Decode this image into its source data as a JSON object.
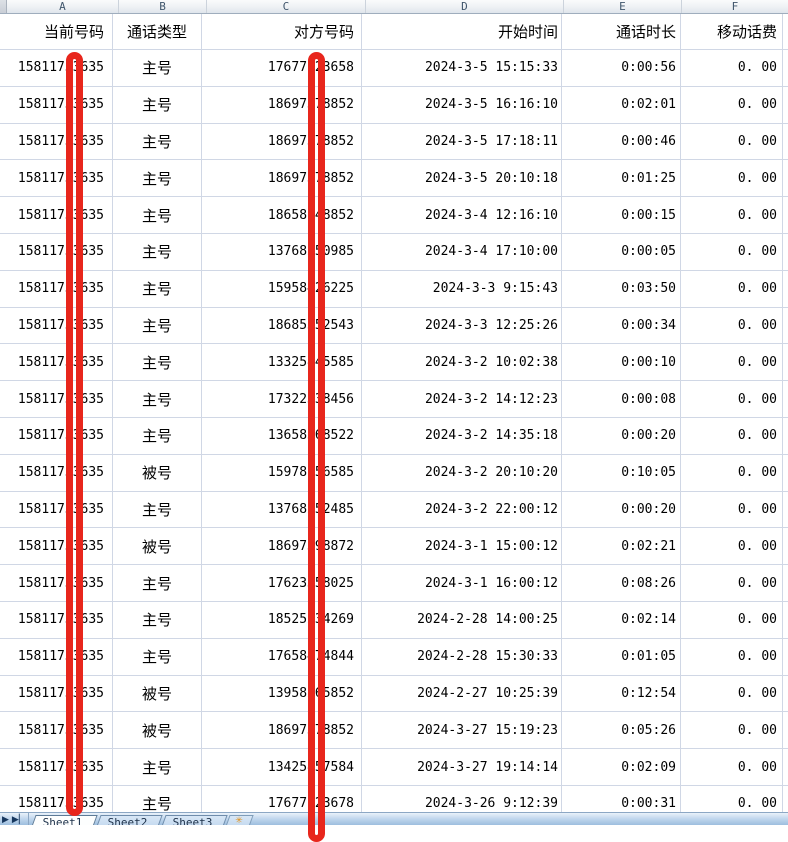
{
  "colors": {
    "redaction_red": "#e8261c",
    "gridline": "#d0d7e5"
  },
  "column_letters": [
    "A",
    "B",
    "C",
    "D",
    "E",
    "F"
  ],
  "table": {
    "headers": [
      "当前号码",
      "通话类型",
      "对方号码",
      "开始时间",
      "通话时长",
      "移动话费"
    ],
    "rows": [
      [
        "15811753635",
        "主号",
        "17677123658",
        "2024-3-5 15:15:33",
        "0:00:56",
        "0. 00"
      ],
      [
        "15811753635",
        "主号",
        "18697378852",
        "2024-3-5 16:16:10",
        "0:02:01",
        "0. 00"
      ],
      [
        "15811753635",
        "主号",
        "18697378852",
        "2024-3-5 17:18:11",
        "0:00:46",
        "0. 00"
      ],
      [
        "15811753635",
        "主号",
        "18697378852",
        "2024-3-5 20:10:18",
        "0:01:25",
        "0. 00"
      ],
      [
        "15811753635",
        "主号",
        "18658148852",
        "2024-3-4 12:16:10",
        "0:00:15",
        "0. 00"
      ],
      [
        "15811753635",
        "主号",
        "13768250985",
        "2024-3-4 17:10:00",
        "0:00:05",
        "0. 00"
      ],
      [
        "15811753635",
        "主号",
        "15958426225",
        "2024-3-3 9:15:43",
        "0:03:50",
        "0. 00"
      ],
      [
        "15811753635",
        "主号",
        "18685552543",
        "2024-3-3 12:25:26",
        "0:00:34",
        "0. 00"
      ],
      [
        "15811753635",
        "主号",
        "13325845585",
        "2024-3-2 10:02:38",
        "0:00:10",
        "0. 00"
      ],
      [
        "15811753635",
        "主号",
        "17322338456",
        "2024-3-2 14:12:23",
        "0:00:08",
        "0. 00"
      ],
      [
        "15811753635",
        "主号",
        "13658568522",
        "2024-3-2 14:35:18",
        "0:00:20",
        "0. 00"
      ],
      [
        "15811753635",
        "被号",
        "15978156585",
        "2024-3-2 20:10:20",
        "0:10:05",
        "0. 00"
      ],
      [
        "15811753635",
        "主号",
        "13768252485",
        "2024-3-2 22:00:12",
        "0:00:20",
        "0. 00"
      ],
      [
        "15811753635",
        "被号",
        "18697398872",
        "2024-3-1 15:00:12",
        "0:02:21",
        "0. 00"
      ],
      [
        "15811753635",
        "主号",
        "17623358025",
        "2024-3-1 16:00:12",
        "0:08:26",
        "0. 00"
      ],
      [
        "15811753635",
        "主号",
        "18525234269",
        "2024-2-28 14:00:25",
        "0:02:14",
        "0. 00"
      ],
      [
        "15811753635",
        "主号",
        "17658474844",
        "2024-2-28 15:30:33",
        "0:01:05",
        "0. 00"
      ],
      [
        "15811753635",
        "被号",
        "13958265852",
        "2024-2-27 10:25:39",
        "0:12:54",
        "0. 00"
      ],
      [
        "15811753635",
        "被号",
        "18697378852",
        "2024-3-27 15:19:23",
        "0:05:26",
        "0. 00"
      ],
      [
        "15811753635",
        "主号",
        "13425857584",
        "2024-3-27 19:14:14",
        "0:02:09",
        "0. 00"
      ],
      [
        "15811753635",
        "主号",
        "17677123678",
        "2024-3-26 9:12:39",
        "0:00:31",
        "0. 00"
      ]
    ]
  },
  "sheet_tabs": {
    "tabs": [
      "Sheet1",
      "Sheet2",
      "Sheet3"
    ],
    "active": "Sheet1",
    "nav_next": "▶",
    "nav_last": "▶▏",
    "insert_icon": "✳"
  }
}
